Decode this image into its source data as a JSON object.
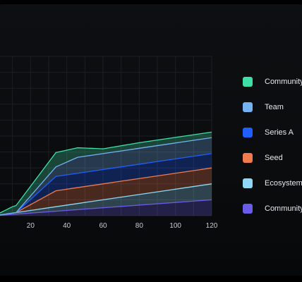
{
  "chart_data": {
    "type": "area",
    "stacked": true,
    "grid": true,
    "legend_position": "right",
    "xlim": [
      0,
      120
    ],
    "ylim": [
      0,
      100
    ],
    "x_ticks": [
      20,
      40,
      60,
      80,
      100,
      120
    ],
    "series": [
      {
        "name": "Community",
        "color": "#6b5ce7",
        "x": [
          0,
          120
        ],
        "y": [
          0,
          10
        ]
      },
      {
        "name": "Ecosystem",
        "color": "#8fd8f5",
        "x": [
          0,
          120
        ],
        "y": [
          0,
          10
        ]
      },
      {
        "name": "Seed",
        "color": "#ef7b4f",
        "x": [
          0,
          12,
          34,
          120
        ],
        "y": [
          0,
          0,
          10,
          10
        ]
      },
      {
        "name": "Series A",
        "color": "#1f5fff",
        "x": [
          0,
          12,
          34,
          120
        ],
        "y": [
          0,
          0,
          9,
          9
        ]
      },
      {
        "name": "Team",
        "color": "#74b3f2",
        "x": [
          0,
          12,
          34,
          46,
          120
        ],
        "y": [
          0,
          0,
          6,
          10,
          10
        ]
      },
      {
        "name": "Community",
        "color": "#3fe0a6",
        "x": [
          0,
          10,
          34,
          46,
          60,
          80,
          100,
          120
        ],
        "y": [
          0,
          4,
          9,
          6,
          3,
          3.5,
          3.5,
          3.5
        ]
      }
    ]
  }
}
